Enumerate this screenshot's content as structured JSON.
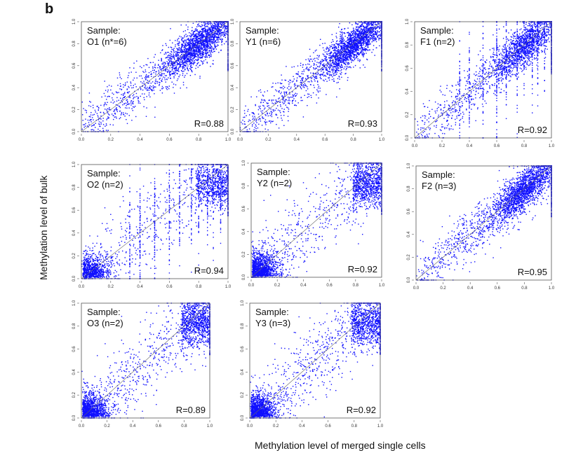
{
  "figure": {
    "panel_label": "b",
    "xlabel": "Methylation level of merged single cells",
    "ylabel": "Methylation level of bulk"
  },
  "chart_data": [
    {
      "type": "scatter",
      "sample_heading": "Sample:",
      "sample": "O1 (n*=6)",
      "annotation": "R=0.88",
      "r": 0.88,
      "xlim": [
        0,
        1
      ],
      "ylim": [
        0,
        1
      ],
      "ticks": [
        "0.0",
        "0.2",
        "0.4",
        "0.6",
        "0.8",
        "1.0"
      ],
      "color": "#1010ff",
      "distribution": "high-cluster"
    },
    {
      "type": "scatter",
      "sample_heading": "Sample:",
      "sample": "Y1 (n=6)",
      "annotation": "R=0.93",
      "r": 0.93,
      "xlim": [
        0,
        1
      ],
      "ylim": [
        0,
        1
      ],
      "ticks": [
        "0.0",
        "0.2",
        "0.4",
        "0.6",
        "0.8",
        "1.0"
      ],
      "color": "#1010ff",
      "distribution": "high-cluster"
    },
    {
      "type": "scatter",
      "sample_heading": "Sample:",
      "sample": "F1 (n=2)",
      "annotation": "R=0.92",
      "r": 0.92,
      "xlim": [
        0,
        1
      ],
      "ylim": [
        0,
        1
      ],
      "ticks": [
        "0.0",
        "0.2",
        "0.4",
        "0.6",
        "0.8",
        "1.0"
      ],
      "color": "#1010ff",
      "distribution": "high-cluster-stripes"
    },
    {
      "type": "scatter",
      "sample_heading": "Sample:",
      "sample": "O2 (n=2)",
      "annotation": "R=0.94",
      "r": 0.94,
      "xlim": [
        0,
        1
      ],
      "ylim": [
        0,
        1
      ],
      "ticks": [
        "0.0",
        "0.2",
        "0.4",
        "0.6",
        "0.8",
        "1.0"
      ],
      "color": "#1010ff",
      "distribution": "bimodal-stripes"
    },
    {
      "type": "scatter",
      "sample_heading": "Sample:",
      "sample": "Y2 (n=2)",
      "annotation": "R=0.92",
      "r": 0.92,
      "xlim": [
        0,
        1
      ],
      "ylim": [
        0,
        1
      ],
      "ticks": [
        "0.0",
        "0.2",
        "0.4",
        "0.6",
        "0.8",
        "1.0"
      ],
      "color": "#1010ff",
      "distribution": "bimodal"
    },
    {
      "type": "scatter",
      "sample_heading": "Sample:",
      "sample": "F2 (n=3)",
      "annotation": "R=0.95",
      "r": 0.95,
      "xlim": [
        0,
        1
      ],
      "ylim": [
        0,
        1
      ],
      "ticks": [
        "0.0",
        "0.2",
        "0.4",
        "0.6",
        "0.8",
        "1.0"
      ],
      "color": "#1010ff",
      "distribution": "high-cluster"
    },
    {
      "type": "scatter",
      "sample_heading": "Sample:",
      "sample": "O3 (n=2)",
      "annotation": "R=0.89",
      "r": 0.89,
      "xlim": [
        0,
        1
      ],
      "ylim": [
        0,
        1
      ],
      "ticks": [
        "0.0",
        "0.2",
        "0.4",
        "0.6",
        "0.8",
        "1.0"
      ],
      "color": "#1010ff",
      "distribution": "bimodal"
    },
    {
      "type": "scatter",
      "sample_heading": "Sample:",
      "sample": "Y3 (n=3)",
      "annotation": "R=0.92",
      "r": 0.92,
      "xlim": [
        0,
        1
      ],
      "ylim": [
        0,
        1
      ],
      "ticks": [
        "0.0",
        "0.2",
        "0.4",
        "0.6",
        "0.8",
        "1.0"
      ],
      "color": "#1010ff",
      "distribution": "bimodal"
    }
  ]
}
